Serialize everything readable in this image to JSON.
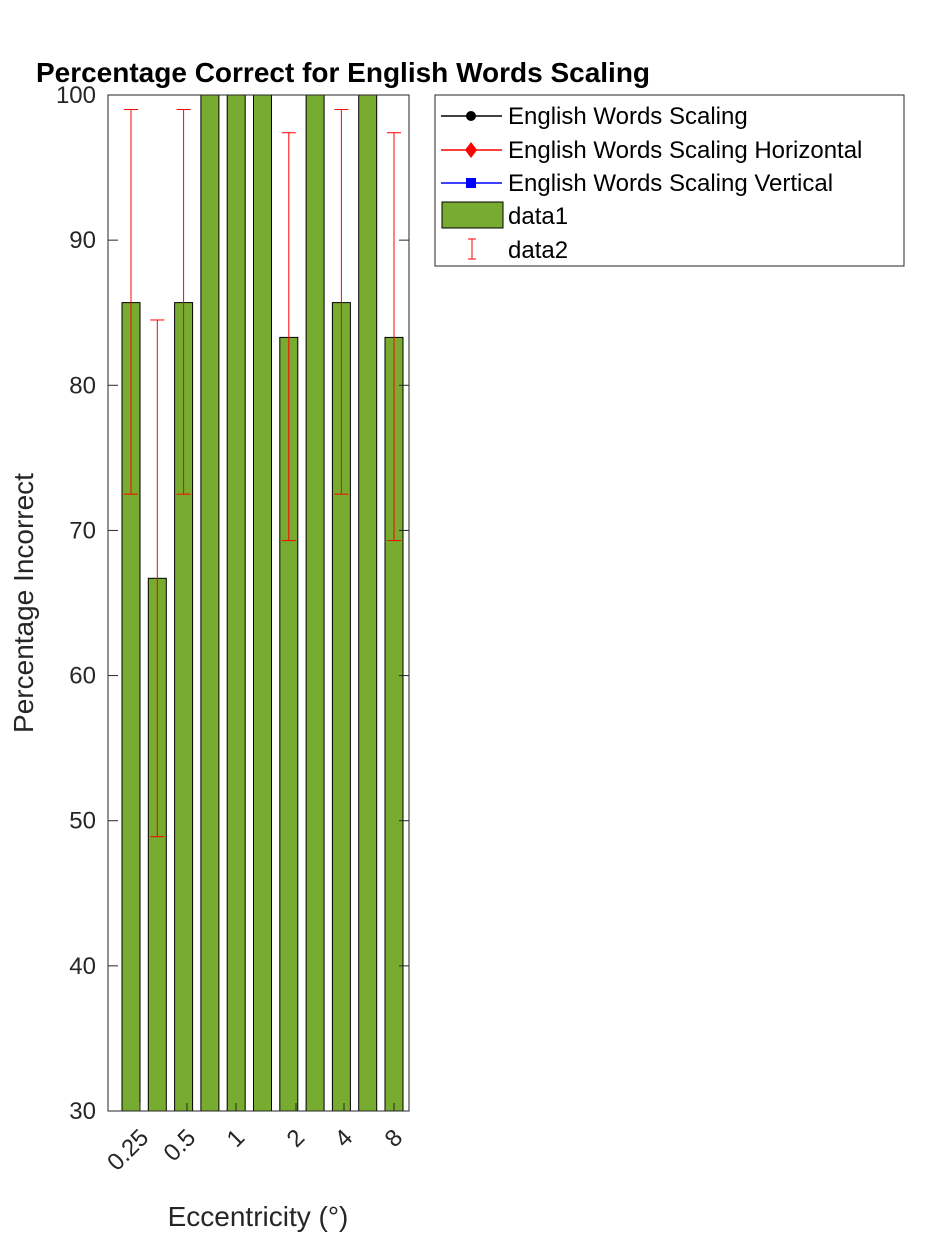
{
  "chart_data": {
    "type": "bar",
    "title": "Percentage Correct for English Words Scaling",
    "xlabel": "Eccentricity (°)",
    "ylabel": "Percentage Incorrect",
    "ylim": [
      30,
      100
    ],
    "yticks": [
      30,
      40,
      50,
      60,
      70,
      80,
      90,
      100
    ],
    "x_tick_labels": [
      "0.25",
      "0.5",
      "1",
      "2",
      "4",
      "8"
    ],
    "bar_color": "#77ac30",
    "errorbar_color": "#ff0000",
    "bars": [
      {
        "value": 85.7,
        "lower": 72.5,
        "upper": 99.0
      },
      {
        "value": 66.7,
        "lower": 48.9,
        "upper": 84.5
      },
      {
        "value": 85.7,
        "lower": 72.5,
        "upper": 99.0
      },
      {
        "value": 100,
        "lower": 100,
        "upper": 100
      },
      {
        "value": 100,
        "lower": 100,
        "upper": 100
      },
      {
        "value": 100,
        "lower": 100,
        "upper": 100
      },
      {
        "value": 83.3,
        "lower": 69.3,
        "upper": 97.4
      },
      {
        "value": 100,
        "lower": 100,
        "upper": 100
      },
      {
        "value": 85.7,
        "lower": 72.5,
        "upper": 99.0
      },
      {
        "value": 100,
        "lower": 100,
        "upper": 100
      },
      {
        "value": 83.3,
        "lower": 69.3,
        "upper": 97.4
      }
    ],
    "legend_position": "outside-top-right",
    "legend": [
      {
        "label": "English Words Scaling",
        "kind": "line-marker",
        "color": "#000000",
        "marker": "circle"
      },
      {
        "label": "English Words Scaling Horizontal",
        "kind": "line-marker",
        "color": "#ff0000",
        "marker": "diamond"
      },
      {
        "label": "English Words Scaling Vertical",
        "kind": "line-marker",
        "color": "#0000ff",
        "marker": "square"
      },
      {
        "label": "data1",
        "kind": "bar",
        "color": "#77ac30"
      },
      {
        "label": "data2",
        "kind": "errorbar",
        "color": "#ff0000"
      }
    ]
  }
}
